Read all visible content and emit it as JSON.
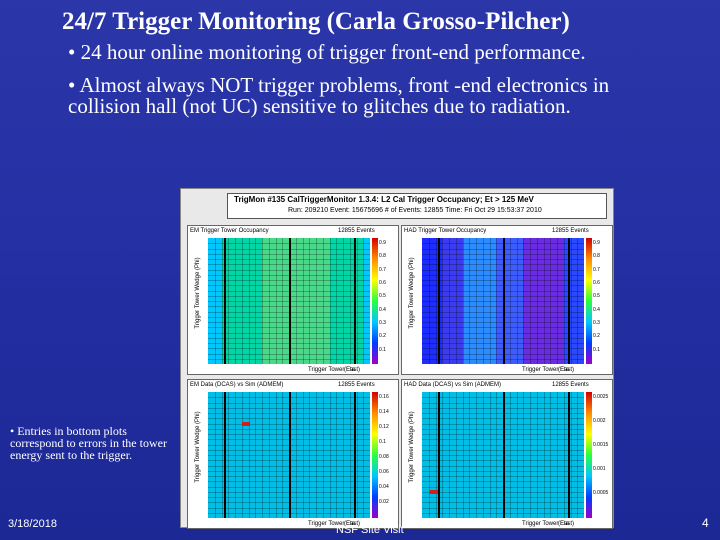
{
  "slide": {
    "title": "24/7 Trigger Monitoring (Carla Grosso-Pilcher)",
    "bullets": [
      "• 24 hour online monitoring of trigger front-end performance.",
      "• Almost always NOT trigger problems, front -end electronics in collision hall (not UC) sensitive to glitches due to radiation."
    ],
    "side_note": "• Entries in bottom plots correspond to errors in the tower energy sent to the trigger.",
    "date": "3/18/2018",
    "footer_center": "NSF Site Visit",
    "page_number": "4"
  },
  "canvas": {
    "header_line1": "TrigMon #135 CalTriggerMonitor   1.3.4: L2 Cal Trigger Occupancy; Et > 125 MeV",
    "header_line2": "Run: 209210 Event: 15675696  # of Events: 12855  Time: Fri Oct 29 15:53:37 2010",
    "panels": [
      {
        "title": "EM Trigger Tower Occupancy",
        "events": "12855 Events",
        "ylabel": "Trigger Tower Wedge (Phi)",
        "xlabel": "Trigger Tower Eta",
        "east": "(East)",
        "ticks": [
          "0.9",
          "0.8",
          "0.7",
          "0.6",
          "0.5",
          "0.4",
          "0.3",
          "0.2",
          "0.1"
        ],
        "colormap": "em"
      },
      {
        "title": "HAD Trigger Tower Occupancy",
        "events": "12855 Events",
        "ylabel": "Trigger Tower Wedge (Phi)",
        "xlabel": "Trigger Tower Eta",
        "east": "(East)",
        "ticks": [
          "0.9",
          "0.8",
          "0.7",
          "0.6",
          "0.5",
          "0.4",
          "0.3",
          "0.2",
          "0.1"
        ],
        "colormap": "had"
      },
      {
        "title": "EM Data (DCAS) vs Sim (ADMEM)",
        "events": "12855 Events",
        "ylabel": "Trigger Tower Wedge (Phi)",
        "xlabel": "Trigger Tower Eta",
        "east": "(East)",
        "ticks": [
          "0.16",
          "0.14",
          "0.12",
          "0.1",
          "0.08",
          "0.06",
          "0.04",
          "0.02"
        ],
        "colormap": "errors"
      },
      {
        "title": "HAD Data (DCAS) vs Sim (ADMEM)",
        "events": "12855 Events",
        "ylabel": "Trigger Tower Wedge (Phi)",
        "xlabel": "Trigger Tower Eta",
        "east": "(East)",
        "ticks": [
          "0.0025",
          "0.002",
          "0.0015",
          "0.001",
          "0.0005"
        ],
        "colormap": "errors"
      }
    ]
  }
}
